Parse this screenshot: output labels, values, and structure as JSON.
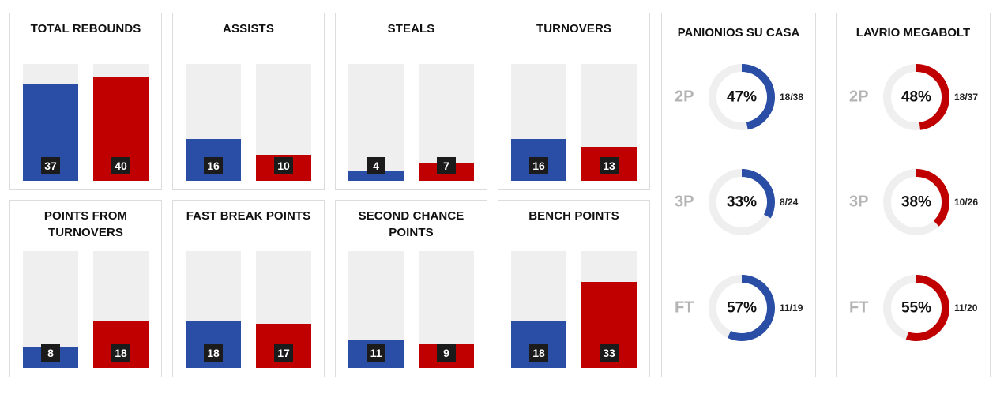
{
  "colors": {
    "home": "#2a4ea6",
    "away": "#c00000",
    "track": "#efefef",
    "label_bg": "#1b1b1b"
  },
  "bar_scale_max": 45,
  "bar_cards": [
    {
      "title": "TOTAL REBOUNDS",
      "home": 37,
      "away": 40,
      "home_label": "37",
      "away_label": "40"
    },
    {
      "title": "ASSISTS",
      "home": 16,
      "away": 10,
      "home_label": "16",
      "away_label": "10"
    },
    {
      "title": "STEALS",
      "home": 4,
      "away": 7,
      "home_label": "4",
      "away_label": "7"
    },
    {
      "title": "TURNOVERS",
      "home": 16,
      "away": 13,
      "home_label": "16",
      "away_label": "13"
    },
    {
      "title": "POINTS FROM TURNOVERS",
      "home": 8,
      "away": 18,
      "home_label": "8",
      "away_label": "18"
    },
    {
      "title": "FAST BREAK POINTS",
      "home": 18,
      "away": 17,
      "home_label": "18",
      "away_label": "17"
    },
    {
      "title": "SECOND CHANCE POINTS",
      "home": 11,
      "away": 9,
      "home_label": "11",
      "away_label": "9"
    },
    {
      "title": "BENCH POINTS",
      "home": 18,
      "away": 33,
      "home_label": "18",
      "away_label": "33"
    }
  ],
  "team_cards": [
    {
      "team": "PANIONIOS SU CASA",
      "color": "#2a4ea6",
      "stats": [
        {
          "type": "2P",
          "pct_label": "47%",
          "pct": 47,
          "ratio": "18/38"
        },
        {
          "type": "3P",
          "pct_label": "33%",
          "pct": 33,
          "ratio": "8/24"
        },
        {
          "type": "FT",
          "pct_label": "57%",
          "pct": 57,
          "ratio": "11/19"
        }
      ]
    },
    {
      "team": "LAVRIO MEGABOLT",
      "color": "#c00000",
      "stats": [
        {
          "type": "2P",
          "pct_label": "48%",
          "pct": 48,
          "ratio": "18/37"
        },
        {
          "type": "3P",
          "pct_label": "38%",
          "pct": 38,
          "ratio": "10/26"
        },
        {
          "type": "FT",
          "pct_label": "55%",
          "pct": 55,
          "ratio": "11/20"
        }
      ]
    }
  ],
  "chart_data": [
    {
      "type": "bar",
      "title": "TOTAL REBOUNDS",
      "categories": [
        "PANIONIOS SU CASA",
        "LAVRIO MEGABOLT"
      ],
      "values": [
        37,
        40
      ]
    },
    {
      "type": "bar",
      "title": "ASSISTS",
      "categories": [
        "PANIONIOS SU CASA",
        "LAVRIO MEGABOLT"
      ],
      "values": [
        16,
        10
      ]
    },
    {
      "type": "bar",
      "title": "STEALS",
      "categories": [
        "PANIONIOS SU CASA",
        "LAVRIO MEGABOLT"
      ],
      "values": [
        4,
        7
      ]
    },
    {
      "type": "bar",
      "title": "TURNOVERS",
      "categories": [
        "PANIONIOS SU CASA",
        "LAVRIO MEGABOLT"
      ],
      "values": [
        16,
        13
      ]
    },
    {
      "type": "bar",
      "title": "POINTS FROM TURNOVERS",
      "categories": [
        "PANIONIOS SU CASA",
        "LAVRIO MEGABOLT"
      ],
      "values": [
        8,
        18
      ]
    },
    {
      "type": "bar",
      "title": "FAST BREAK POINTS",
      "categories": [
        "PANIONIOS SU CASA",
        "LAVRIO MEGABOLT"
      ],
      "values": [
        18,
        17
      ]
    },
    {
      "type": "bar",
      "title": "SECOND CHANCE POINTS",
      "categories": [
        "PANIONIOS SU CASA",
        "LAVRIO MEGABOLT"
      ],
      "values": [
        11,
        9
      ]
    },
    {
      "type": "bar",
      "title": "BENCH POINTS",
      "categories": [
        "PANIONIOS SU CASA",
        "LAVRIO MEGABOLT"
      ],
      "values": [
        18,
        33
      ]
    },
    {
      "type": "pie",
      "title": "PANIONIOS SU CASA",
      "categories": [
        "2P",
        "3P",
        "FT"
      ],
      "values": [
        47,
        33,
        57
      ],
      "ratios": [
        "18/38",
        "8/24",
        "11/19"
      ]
    },
    {
      "type": "pie",
      "title": "LAVRIO MEGABOLT",
      "categories": [
        "2P",
        "3P",
        "FT"
      ],
      "values": [
        48,
        38,
        55
      ],
      "ratios": [
        "18/37",
        "10/26",
        "11/20"
      ]
    }
  ]
}
